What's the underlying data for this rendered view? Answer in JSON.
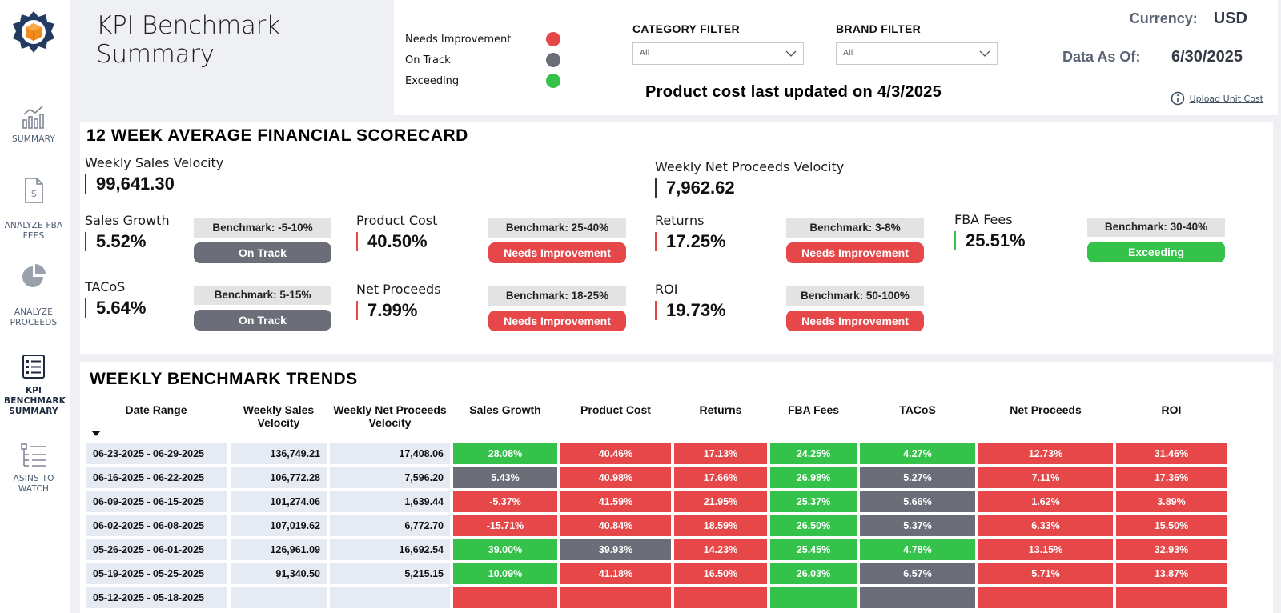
{
  "colors": {
    "needs_improvement": "#e6484a",
    "on_track": "#6b6d78",
    "exceeding": "#34c24a",
    "accent_dark": "#1d2a3e"
  },
  "nav": {
    "items": [
      {
        "label": "SUMMARY",
        "icon": "line-bar-chart-icon"
      },
      {
        "label": "ANALYZE FBA FEES",
        "icon": "invoice-dollar-icon"
      },
      {
        "label": "ANALYZE PROCEEDS",
        "icon": "pie-chart-icon"
      },
      {
        "label": "KPI BENCHMARK SUMMARY",
        "icon": "checklist-icon",
        "active": true
      },
      {
        "label": "ASINS TO WATCH",
        "icon": "hierarchy-list-icon"
      }
    ]
  },
  "header": {
    "title": "KPI Benchmark Summary",
    "legend": [
      {
        "label": "Needs Improvement",
        "color": "#e6484a"
      },
      {
        "label": "On Track",
        "color": "#6b6d78"
      },
      {
        "label": "Exceeding",
        "color": "#34c24a"
      }
    ],
    "category_filter": {
      "label": "CATEGORY FILTER",
      "value": "All"
    },
    "brand_filter": {
      "label": "BRAND FILTER",
      "value": "All"
    },
    "product_cost_note": "Product cost last updated on 4/3/2025",
    "currency_label": "Currency:",
    "currency_value": "USD",
    "data_as_of_label": "Data As Of:",
    "data_as_of_value": "6/30/2025",
    "upload_link": "Upload Unit Cost"
  },
  "scorecard": {
    "title": "12 WEEK AVERAGE FINANCIAL SCORECARD",
    "weekly_sales_velocity": {
      "label": "Weekly Sales Velocity",
      "value": "99,641.30"
    },
    "weekly_net_proceeds_velocity": {
      "label": "Weekly Net Proceeds Velocity",
      "value": "7,962.62"
    },
    "metrics": [
      {
        "label": "Sales Growth",
        "value": "5.52%",
        "benchmark": "Benchmark: -5-10%",
        "status": "On Track"
      },
      {
        "label": "Product Cost",
        "value": "40.50%",
        "benchmark": "Benchmark: 25-40%",
        "status": "Needs Improvement"
      },
      {
        "label": "Returns",
        "value": "17.25%",
        "benchmark": "Benchmark: 3-8%",
        "status": "Needs Improvement"
      },
      {
        "label": "FBA Fees",
        "value": "25.51%",
        "benchmark": "Benchmark: 30-40%",
        "status": "Exceeding"
      },
      {
        "label": "TACoS",
        "value": "5.64%",
        "benchmark": "Benchmark: 5-15%",
        "status": "On Track"
      },
      {
        "label": "Net Proceeds",
        "value": "7.99%",
        "benchmark": "Benchmark: 18-25%",
        "status": "Needs Improvement"
      },
      {
        "label": "ROI",
        "value": "19.73%",
        "benchmark": "Benchmark: 50-100%",
        "status": "Needs Improvement"
      }
    ]
  },
  "trends": {
    "title": "WEEKLY BENCHMARK TRENDS",
    "columns": [
      "Date Range",
      "Weekly Sales Velocity",
      "Weekly Net Proceeds Velocity",
      "Sales Growth",
      "Product Cost",
      "Returns",
      "FBA Fees",
      "TACoS",
      "Net Proceeds",
      "ROI"
    ],
    "rows": [
      {
        "date": "06-23-2025 - 06-29-2025",
        "wsv": "136,749.21",
        "wnpv": "17,408.06",
        "cells": [
          [
            "28.08%",
            "exceeding"
          ],
          [
            "40.46%",
            "needs"
          ],
          [
            "17.13%",
            "needs"
          ],
          [
            "24.25%",
            "exceeding"
          ],
          [
            "4.27%",
            "exceeding"
          ],
          [
            "12.73%",
            "needs"
          ],
          [
            "31.46%",
            "needs"
          ]
        ]
      },
      {
        "date": "06-16-2025 - 06-22-2025",
        "wsv": "106,772.28",
        "wnpv": "7,596.20",
        "cells": [
          [
            "5.43%",
            "ontrack"
          ],
          [
            "40.98%",
            "needs"
          ],
          [
            "17.66%",
            "needs"
          ],
          [
            "26.98%",
            "exceeding"
          ],
          [
            "5.27%",
            "ontrack"
          ],
          [
            "7.11%",
            "needs"
          ],
          [
            "17.36%",
            "needs"
          ]
        ]
      },
      {
        "date": "06-09-2025 - 06-15-2025",
        "wsv": "101,274.06",
        "wnpv": "1,639.44",
        "cells": [
          [
            "-5.37%",
            "needs"
          ],
          [
            "41.59%",
            "needs"
          ],
          [
            "21.95%",
            "needs"
          ],
          [
            "25.37%",
            "exceeding"
          ],
          [
            "5.66%",
            "ontrack"
          ],
          [
            "1.62%",
            "needs"
          ],
          [
            "3.89%",
            "needs"
          ]
        ]
      },
      {
        "date": "06-02-2025 - 06-08-2025",
        "wsv": "107,019.62",
        "wnpv": "6,772.70",
        "cells": [
          [
            "-15.71%",
            "needs"
          ],
          [
            "40.84%",
            "needs"
          ],
          [
            "18.59%",
            "needs"
          ],
          [
            "26.50%",
            "exceeding"
          ],
          [
            "5.37%",
            "ontrack"
          ],
          [
            "6.33%",
            "needs"
          ],
          [
            "15.50%",
            "needs"
          ]
        ]
      },
      {
        "date": "05-26-2025 - 06-01-2025",
        "wsv": "126,961.09",
        "wnpv": "16,692.54",
        "cells": [
          [
            "39.00%",
            "exceeding"
          ],
          [
            "39.93%",
            "ontrack"
          ],
          [
            "14.23%",
            "needs"
          ],
          [
            "25.45%",
            "exceeding"
          ],
          [
            "4.78%",
            "exceeding"
          ],
          [
            "13.15%",
            "needs"
          ],
          [
            "32.93%",
            "needs"
          ]
        ]
      },
      {
        "date": "05-19-2025 - 05-25-2025",
        "wsv": "91,340.50",
        "wnpv": "5,215.15",
        "cells": [
          [
            "10.09%",
            "exceeding"
          ],
          [
            "41.18%",
            "needs"
          ],
          [
            "16.50%",
            "needs"
          ],
          [
            "26.03%",
            "exceeding"
          ],
          [
            "6.57%",
            "ontrack"
          ],
          [
            "5.71%",
            "needs"
          ],
          [
            "13.87%",
            "needs"
          ]
        ]
      },
      {
        "date": "05-12-2025 - 05-18-2025",
        "wsv": "",
        "wnpv": "",
        "cells": [
          [
            "",
            "needs"
          ],
          [
            "",
            "needs"
          ],
          [
            "",
            "needs"
          ],
          [
            "",
            "exceeding"
          ],
          [
            "",
            "ontrack"
          ],
          [
            "",
            "needs"
          ],
          [
            "",
            "needs"
          ]
        ]
      }
    ]
  }
}
